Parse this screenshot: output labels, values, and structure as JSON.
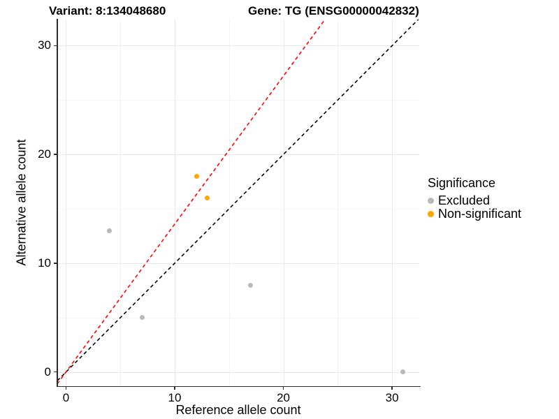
{
  "chart_data": {
    "type": "scatter",
    "titles": [
      "Variant: 8:134048680",
      "Gene: TG (ENSG00000042832)"
    ],
    "xlabel": "Reference allele count",
    "ylabel": "Alternative allele count",
    "xlim": [
      -0.8,
      32.5
    ],
    "ylim": [
      -1.3,
      32.4
    ],
    "x_ticks": [
      0,
      10,
      20,
      30
    ],
    "y_ticks": [
      0,
      10,
      20,
      30
    ],
    "x_minor_ticks": [
      5,
      15,
      25
    ],
    "y_minor_ticks": [
      5,
      15,
      25
    ],
    "grid": "major+minor",
    "grid_major_color": "#e8e8e8",
    "grid_minor_color": "#f3f3f3",
    "legend": {
      "title": "Significance",
      "position": "right",
      "items": [
        {
          "label": "Excluded",
          "color": "#b9b9b9"
        },
        {
          "label": "Non-significant",
          "color": "#ffa500"
        }
      ]
    },
    "series": [
      {
        "name": "Excluded",
        "color": "#b9b9b9",
        "points": [
          [
            4,
            13
          ],
          [
            7,
            5
          ],
          [
            17,
            8
          ],
          [
            31,
            0
          ]
        ]
      },
      {
        "name": "Non-significant",
        "color": "#ffa500",
        "points": [
          [
            12,
            18
          ],
          [
            13,
            16
          ]
        ]
      }
    ],
    "ablines": [
      {
        "name": "identity-line",
        "slope": 1,
        "intercept": 0,
        "color": "#000000",
        "style": "dashed"
      },
      {
        "name": "expected-ratio-line",
        "slope": 1.36,
        "intercept": 0,
        "color": "#ff0000",
        "style": "dashed"
      }
    ]
  }
}
